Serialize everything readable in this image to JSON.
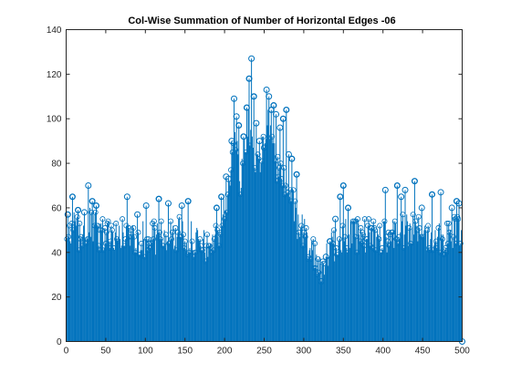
{
  "chart_data": {
    "type": "stem",
    "title": "Col-Wise Summation of Number of Horizontal Edges -06",
    "xlabel": "",
    "ylabel": "",
    "xlim": [
      0,
      500
    ],
    "ylim": [
      0,
      140
    ],
    "xticks": [
      0,
      50,
      100,
      150,
      200,
      250,
      300,
      350,
      400,
      450,
      500
    ],
    "yticks": [
      0,
      20,
      40,
      60,
      80,
      100,
      120,
      140
    ],
    "grid": false,
    "legend": "none",
    "marker": "circle",
    "color": "#0072BD",
    "n_points": 500,
    "profile_x": [
      1,
      10,
      20,
      30,
      40,
      60,
      80,
      100,
      120,
      140,
      160,
      170,
      180,
      190,
      195,
      200,
      205,
      210,
      215,
      220,
      225,
      230,
      235,
      240,
      245,
      250,
      255,
      260,
      265,
      270,
      275,
      280,
      285,
      290,
      295,
      300,
      310,
      320,
      325,
      330,
      340,
      350,
      360,
      380,
      400,
      420,
      440,
      460,
      480,
      499,
      500
    ],
    "profile_y": [
      46,
      50,
      48,
      52,
      49,
      47,
      48,
      46,
      47,
      48,
      46,
      42,
      43,
      47,
      52,
      58,
      68,
      84,
      88,
      74,
      85,
      96,
      90,
      78,
      84,
      92,
      97,
      95,
      80,
      76,
      75,
      70,
      65,
      55,
      50,
      48,
      42,
      35,
      30,
      40,
      44,
      48,
      47,
      48,
      47,
      49,
      50,
      48,
      47,
      50,
      0
    ],
    "highlights": [
      {
        "x": 2,
        "y": 57
      },
      {
        "x": 8,
        "y": 65
      },
      {
        "x": 15,
        "y": 59
      },
      {
        "x": 23,
        "y": 58
      },
      {
        "x": 28,
        "y": 70
      },
      {
        "x": 33,
        "y": 63
      },
      {
        "x": 38,
        "y": 61
      },
      {
        "x": 77,
        "y": 65
      },
      {
        "x": 90,
        "y": 57
      },
      {
        "x": 101,
        "y": 61
      },
      {
        "x": 117,
        "y": 64
      },
      {
        "x": 129,
        "y": 62
      },
      {
        "x": 146,
        "y": 61
      },
      {
        "x": 154,
        "y": 63
      },
      {
        "x": 190,
        "y": 60
      },
      {
        "x": 196,
        "y": 65
      },
      {
        "x": 202,
        "y": 74
      },
      {
        "x": 205,
        "y": 73
      },
      {
        "x": 209,
        "y": 90
      },
      {
        "x": 212,
        "y": 109
      },
      {
        "x": 215,
        "y": 101
      },
      {
        "x": 218,
        "y": 97
      },
      {
        "x": 224,
        "y": 92
      },
      {
        "x": 228,
        "y": 105
      },
      {
        "x": 231,
        "y": 118
      },
      {
        "x": 234,
        "y": 127
      },
      {
        "x": 237,
        "y": 110
      },
      {
        "x": 240,
        "y": 98
      },
      {
        "x": 244,
        "y": 90
      },
      {
        "x": 250,
        "y": 87
      },
      {
        "x": 253,
        "y": 113
      },
      {
        "x": 256,
        "y": 110
      },
      {
        "x": 259,
        "y": 104
      },
      {
        "x": 262,
        "y": 106
      },
      {
        "x": 265,
        "y": 102
      },
      {
        "x": 270,
        "y": 96
      },
      {
        "x": 274,
        "y": 100
      },
      {
        "x": 278,
        "y": 104
      },
      {
        "x": 281,
        "y": 84
      },
      {
        "x": 285,
        "y": 82
      },
      {
        "x": 291,
        "y": 75
      },
      {
        "x": 322,
        "y": 27
      },
      {
        "x": 328,
        "y": 38
      },
      {
        "x": 333,
        "y": 45
      },
      {
        "x": 340,
        "y": 55
      },
      {
        "x": 346,
        "y": 65
      },
      {
        "x": 350,
        "y": 70
      },
      {
        "x": 356,
        "y": 60
      },
      {
        "x": 403,
        "y": 68
      },
      {
        "x": 418,
        "y": 70
      },
      {
        "x": 423,
        "y": 65
      },
      {
        "x": 428,
        "y": 68
      },
      {
        "x": 440,
        "y": 72
      },
      {
        "x": 449,
        "y": 60
      },
      {
        "x": 462,
        "y": 66
      },
      {
        "x": 473,
        "y": 67
      },
      {
        "x": 487,
        "y": 60
      },
      {
        "x": 493,
        "y": 63
      },
      {
        "x": 496,
        "y": 62
      },
      {
        "x": 500,
        "y": 0
      }
    ]
  }
}
